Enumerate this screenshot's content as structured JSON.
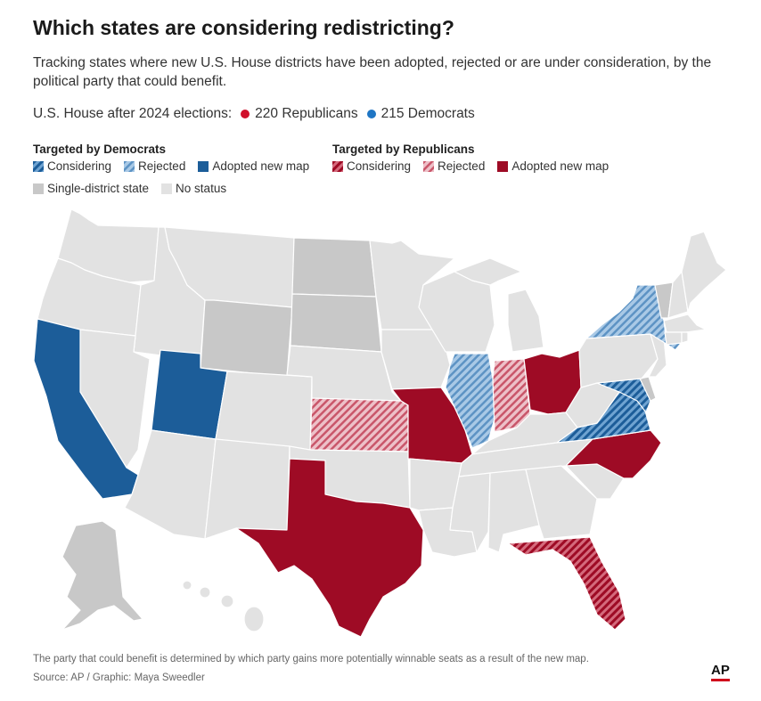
{
  "title": "Which states are considering redistricting?",
  "subtitle": "Tracking states where new U.S. House districts have been adopted, rejected or are under consideration, by the political party that could benefit.",
  "house": {
    "label": "U.S. House after 2024 elections:",
    "republicans": "220 Republicans",
    "democrats": "215 Democrats"
  },
  "legend": {
    "democrats": {
      "heading": "Targeted by Democrats",
      "considering": "Considering",
      "rejected": "Rejected",
      "adopted": "Adopted new map"
    },
    "republicans": {
      "heading": "Targeted by Republicans",
      "considering": "Considering",
      "rejected": "Rejected",
      "adopted": "Adopted new map"
    },
    "single_district": "Single-district state",
    "no_status": "No status"
  },
  "colors": {
    "dem_blue": "#1c5d99",
    "dem_light": "#6fa3d1",
    "rep_red": "#9e0b25",
    "rep_light": "#d46a7c",
    "single_district": "#c8c8c8",
    "no_status": "#e2e2e2",
    "rep_dot": "#d0102b",
    "dem_dot": "#1f76c4"
  },
  "states": {
    "dem_adopted": [
      "California",
      "Utah"
    ],
    "dem_considering": [
      "Virginia",
      "Maryland"
    ],
    "dem_rejected": [
      "New York",
      "Illinois"
    ],
    "rep_adopted": [
      "Texas",
      "Missouri",
      "North Carolina",
      "Ohio"
    ],
    "rep_considering": [
      "Florida"
    ],
    "rep_rejected": [
      "Kansas",
      "Indiana"
    ],
    "single_district": [
      "Wyoming",
      "North Dakota",
      "South Dakota",
      "Vermont",
      "Delaware",
      "Alaska"
    ]
  },
  "footnote": "The party that could benefit is determined by which party gains more potentially winnable seats as a result of the new map.",
  "source": "Source: AP / Graphic: Maya Sweedler",
  "logo": "AP"
}
